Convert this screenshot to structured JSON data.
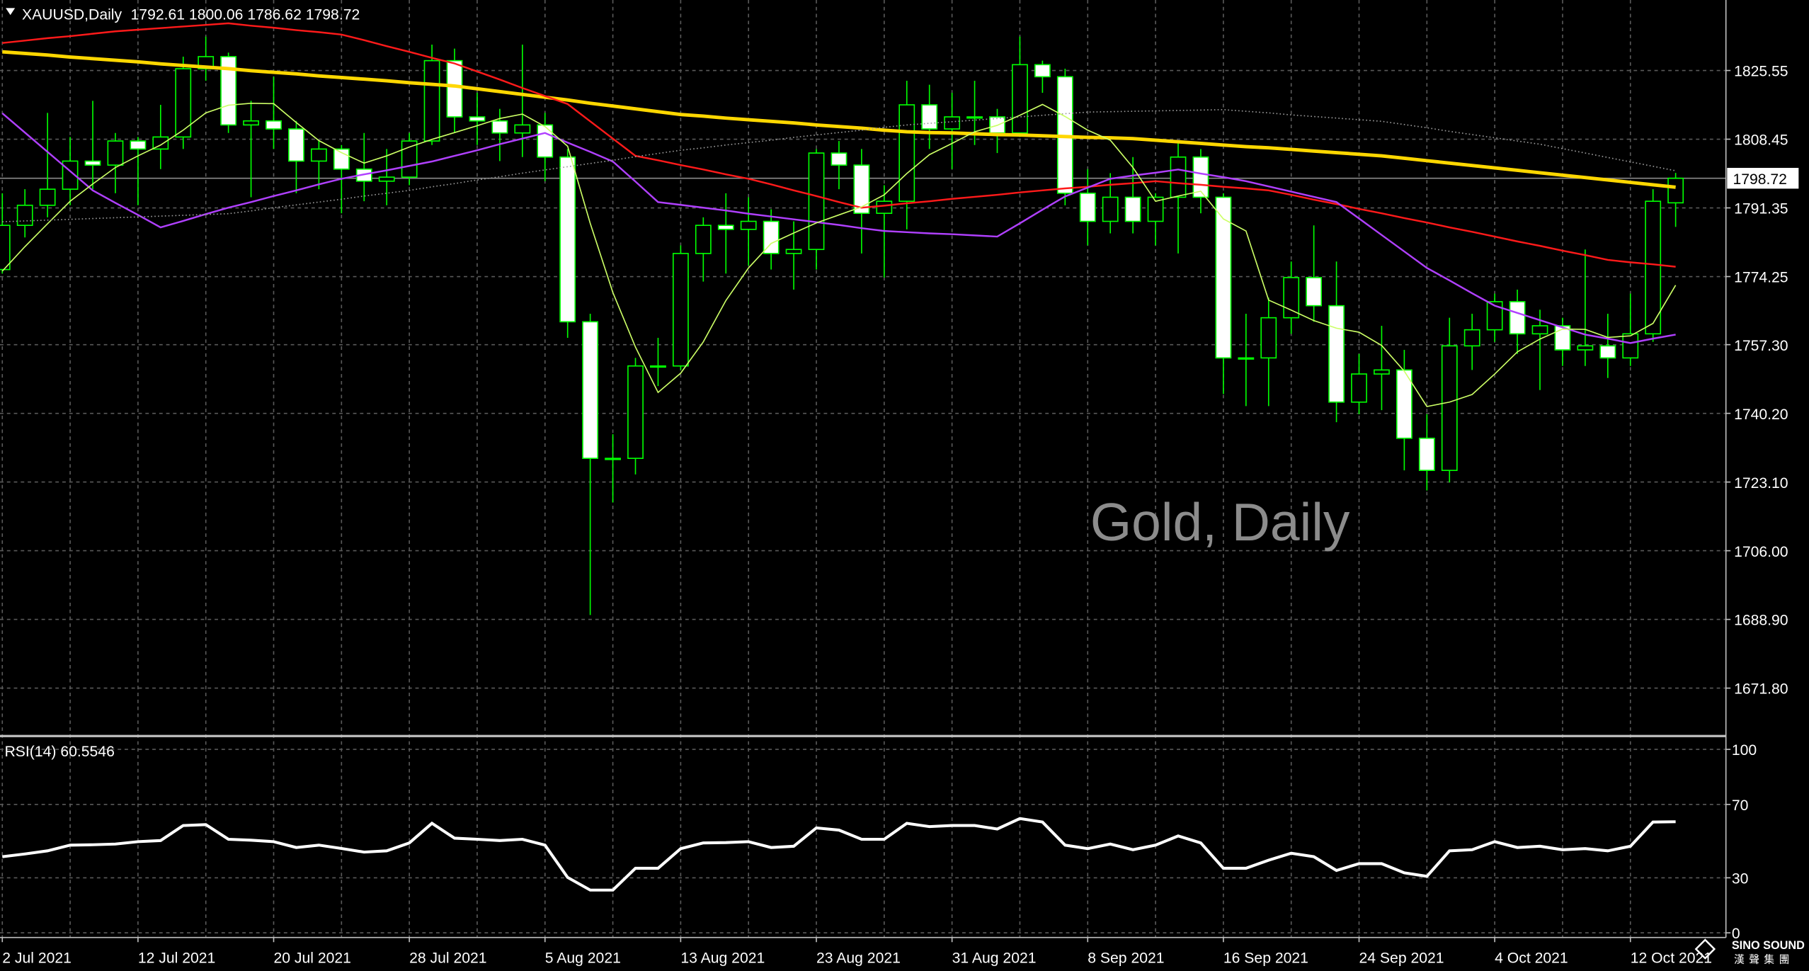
{
  "chart_data": [
    {
      "type": "candlestick",
      "title": "XAUUSD,Daily",
      "watermark": "Gold, Daily",
      "categories": [
        "2 Jul 2021",
        null,
        null,
        null,
        null,
        null,
        "12 Jul 2021",
        null,
        null,
        null,
        null,
        null,
        "20 Jul 2021",
        null,
        null,
        null,
        null,
        null,
        "28 Jul 2021",
        null,
        null,
        null,
        null,
        null,
        "5 Aug 2021",
        null,
        null,
        null,
        null,
        null,
        "13 Aug 2021",
        null,
        null,
        null,
        null,
        null,
        "23 Aug 2021",
        null,
        null,
        null,
        null,
        null,
        "31 Aug 2021",
        null,
        null,
        null,
        null,
        null,
        "8 Sep 2021",
        null,
        null,
        null,
        null,
        null,
        "16 Sep 2021",
        null,
        null,
        null,
        null,
        null,
        "24 Sep 2021",
        null,
        null,
        null,
        null,
        null,
        "4 Oct 2021",
        null,
        null,
        null,
        null,
        null,
        "12 Oct 2021",
        null,
        null
      ],
      "open": [
        1776,
        1787,
        1792,
        1796,
        1803,
        1802,
        1808,
        1806,
        1809,
        1826,
        1829,
        1812,
        1813,
        1811,
        1803,
        1806,
        1801,
        1798,
        1799,
        1808,
        1828,
        1814,
        1813,
        1810,
        1812,
        1804,
        1763,
        1729,
        1729,
        1752,
        1752,
        1780,
        1787,
        1786,
        1788,
        1780,
        1781,
        1805,
        1802,
        1790,
        1793,
        1817,
        1811,
        1814,
        1814,
        1810,
        1827,
        1824,
        1795,
        1788,
        1794,
        1788,
        1794,
        1804,
        1794,
        1754,
        1754,
        1764,
        1774,
        1767,
        1743,
        1750,
        1751,
        1734,
        1726,
        1757,
        1761,
        1768,
        1760,
        1762,
        1756,
        1757,
        1754,
        1760,
        1792.61
      ],
      "high": [
        1795,
        1796,
        1815,
        1809,
        1818,
        1810,
        1809,
        1817,
        1829,
        1834,
        1830,
        1818,
        1824,
        1813,
        1808,
        1807,
        1810,
        1806,
        1810,
        1832,
        1831,
        1820,
        1816,
        1832,
        1815,
        1806,
        1765,
        1735,
        1754,
        1759,
        1782,
        1789,
        1795,
        1794,
        1791,
        1788,
        1806,
        1808,
        1806,
        1797,
        1823,
        1822,
        1820,
        1823,
        1816,
        1834,
        1828,
        1826,
        1801,
        1800,
        1804,
        1795,
        1808,
        1806,
        1795,
        1765,
        1769,
        1778,
        1787,
        1778,
        1755,
        1762,
        1756,
        1740,
        1764,
        1765,
        1770,
        1771,
        1766,
        1764,
        1781,
        1765,
        1770,
        1796,
        1800.06
      ],
      "low": [
        1775,
        1784,
        1789,
        1792,
        1796,
        1795,
        1792,
        1801,
        1806,
        1823,
        1810,
        1794,
        1806,
        1795,
        1796,
        1790,
        1793,
        1792,
        1797,
        1807,
        1810,
        1807,
        1803,
        1804,
        1798,
        1759,
        1690,
        1718,
        1725,
        1747,
        1751,
        1773,
        1775,
        1777,
        1776,
        1771,
        1776,
        1796,
        1780,
        1774,
        1786,
        1806,
        1801,
        1807,
        1805,
        1809,
        1820,
        1792,
        1782,
        1785,
        1785,
        1782,
        1780,
        1790,
        1745,
        1742,
        1742,
        1760,
        1763,
        1738,
        1740,
        1741,
        1726,
        1721,
        1723,
        1751,
        1758,
        1755,
        1746,
        1752,
        1752,
        1749,
        1752,
        1758,
        1786.62
      ],
      "close": [
        1787,
        1792,
        1796,
        1803,
        1802,
        1808,
        1806,
        1809,
        1826,
        1829,
        1812,
        1813,
        1811,
        1803,
        1806,
        1801,
        1798,
        1799,
        1808,
        1828,
        1814,
        1813,
        1810,
        1812,
        1804,
        1763,
        1729,
        1729,
        1752,
        1752,
        1780,
        1787,
        1786,
        1788,
        1780,
        1781,
        1805,
        1802,
        1790,
        1793,
        1817,
        1811,
        1814,
        1814,
        1810,
        1827,
        1824,
        1795,
        1788,
        1794,
        1788,
        1794,
        1804,
        1794,
        1754,
        1754,
        1764,
        1774,
        1767,
        1743,
        1750,
        1751,
        1734,
        1726,
        1757,
        1761,
        1768,
        1760,
        1762,
        1756,
        1757,
        1754,
        1760,
        1793,
        1798.72
      ],
      "up_color": "#00ff00",
      "down_color": "#ffffff",
      "wick_color": "#00ff00",
      "lines": [
        {
          "color": "#ffd700",
          "width": 3,
          "style": "solid",
          "values": [
            1830.2,
            1829.8,
            1829.4,
            1828.9,
            1828.5,
            1828.1,
            1827.7,
            1827.2,
            1826.8,
            1826.4,
            1826.0,
            1825.5,
            1825.1,
            1824.7,
            1824.2,
            1823.8,
            1823.4,
            1823.0,
            1822.5,
            1822.1,
            1821.7,
            1821.0,
            1820.3,
            1819.6,
            1818.9,
            1818.2,
            1817.4,
            1816.7,
            1816.0,
            1815.3,
            1814.6,
            1814.2,
            1813.7,
            1813.3,
            1812.9,
            1812.5,
            1812.0,
            1811.6,
            1811.2,
            1810.7,
            1810.3,
            1810.1,
            1810.0,
            1809.8,
            1809.6,
            1809.5,
            1809.3,
            1809.1,
            1808.9,
            1808.8,
            1808.6,
            1808.2,
            1807.8,
            1807.4,
            1807.0,
            1806.6,
            1806.3,
            1805.9,
            1805.5,
            1805.1,
            1804.7,
            1804.3,
            1803.7,
            1803.1,
            1802.5,
            1801.9,
            1801.3,
            1800.7,
            1800.1,
            1799.5,
            1798.9,
            1798.3,
            1797.7,
            1797.1,
            1796.5
          ]
        },
        {
          "color": "#ff1a1a",
          "width": 1.5,
          "style": "solid",
          "values": [
            1832.4,
            1833.0,
            1833.6,
            1834.1,
            1834.7,
            1835.3,
            1835.7,
            1836.1,
            1836.5,
            1836.9,
            1837.3,
            1836.7,
            1836.2,
            1835.6,
            1835.1,
            1834.5,
            1833.1,
            1831.6,
            1830.2,
            1828.7,
            1827.3,
            1825.3,
            1823.3,
            1821.2,
            1819.2,
            1817.2,
            1812.9,
            1808.6,
            1804.3,
            1803.2,
            1802.0,
            1800.9,
            1799.7,
            1798.6,
            1797.2,
            1795.7,
            1794.3,
            1792.8,
            1791.4,
            1791.9,
            1792.5,
            1793.0,
            1793.6,
            1794.1,
            1794.6,
            1795.2,
            1795.7,
            1796.2,
            1796.6,
            1797.1,
            1797.5,
            1798.0,
            1797.5,
            1797.1,
            1796.6,
            1796.2,
            1795.7,
            1794.6,
            1793.4,
            1792.3,
            1791.1,
            1790.0,
            1788.8,
            1787.7,
            1786.5,
            1785.4,
            1784.2,
            1783.0,
            1781.9,
            1780.7,
            1779.6,
            1778.4,
            1777.8,
            1777.3,
            1776.7
          ]
        },
        {
          "color": "#b040ff",
          "width": 1.5,
          "style": "solid",
          "values": [
            1814.9,
            1810.1,
            1805.3,
            1800.5,
            1795.7,
            1792.6,
            1789.6,
            1786.5,
            1788.1,
            1789.8,
            1791.4,
            1792.8,
            1794.3,
            1795.7,
            1797.2,
            1798.6,
            1799.7,
            1800.7,
            1801.8,
            1802.9,
            1804.3,
            1805.7,
            1807.2,
            1808.6,
            1810.0,
            1807.6,
            1805.3,
            1802.9,
            1797.9,
            1792.8,
            1792.1,
            1791.4,
            1790.7,
            1789.9,
            1789.2,
            1788.5,
            1787.8,
            1787.1,
            1786.3,
            1785.6,
            1785.3,
            1785.0,
            1784.8,
            1784.5,
            1784.2,
            1787.5,
            1790.9,
            1794.2,
            1796.4,
            1798.6,
            1799.4,
            1800.1,
            1800.9,
            1799.9,
            1799.0,
            1798.0,
            1796.7,
            1795.4,
            1794.1,
            1792.8,
            1788.7,
            1784.6,
            1780.5,
            1776.4,
            1773.3,
            1770.1,
            1767.0,
            1765.2,
            1763.4,
            1761.6,
            1759.8,
            1758.8,
            1757.7,
            1758.8,
            1759.8
          ]
        },
        {
          "color": "#ccff66",
          "width": 1,
          "style": "solid",
          "values": [
            1775.6,
            1781.7,
            1787.4,
            1793.0,
            1797.3,
            1801.4,
            1804.3,
            1807.0,
            1810.7,
            1815.0,
            1816.9,
            1817.4,
            1817.3,
            1812.6,
            1808.1,
            1805.1,
            1802.5,
            1804.3,
            1806.5,
            1808.4,
            1810.1,
            1811.8,
            1813.6,
            1814.7,
            1811.6,
            1806.7,
            1787.5,
            1770.3,
            1756.7,
            1745.4,
            1750.2,
            1758.0,
            1768.3,
            1776.4,
            1782.5,
            1785.1,
            1787.6,
            1789.6,
            1791.6,
            1794.6,
            1799.9,
            1804.6,
            1807.4,
            1810.3,
            1811.9,
            1814.4,
            1817.1,
            1814.1,
            1810.7,
            1808.2,
            1801.4,
            1793.0,
            1794.3,
            1795.5,
            1788.6,
            1785.6,
            1768.4,
            1765.9,
            1763.3,
            1761.4,
            1760.4,
            1757.1,
            1750.7,
            1741.9,
            1743.0,
            1744.9,
            1750.0,
            1755.5,
            1758.7,
            1761.2,
            1761.1,
            1759.1,
            1759.5,
            1762.6,
            1772.1
          ]
        },
        {
          "color": "#9a9a9a",
          "width": 1,
          "style": "dotted",
          "values": [
            1787.9,
            1788.1,
            1788.3,
            1788.5,
            1788.7,
            1788.9,
            1789.1,
            1789.3,
            1789.5,
            1789.7,
            1789.9,
            1790.6,
            1791.4,
            1792.1,
            1792.8,
            1793.5,
            1794.3,
            1795.0,
            1795.7,
            1796.6,
            1797.4,
            1798.3,
            1799.1,
            1800.0,
            1800.8,
            1801.6,
            1802.4,
            1803.2,
            1804.1,
            1804.9,
            1805.7,
            1806.3,
            1807.0,
            1807.6,
            1808.2,
            1808.9,
            1809.5,
            1810.1,
            1810.7,
            1811.4,
            1812.0,
            1812.4,
            1812.8,
            1813.2,
            1813.6,
            1814.0,
            1814.4,
            1814.8,
            1815.2,
            1815.3,
            1815.4,
            1815.5,
            1815.6,
            1815.7,
            1815.8,
            1815.4,
            1815.0,
            1814.5,
            1814.1,
            1813.7,
            1813.3,
            1812.9,
            1812.1,
            1811.3,
            1810.4,
            1809.6,
            1808.8,
            1808.0,
            1807.2,
            1806.1,
            1805.0,
            1803.9,
            1802.8,
            1801.7,
            1800.6
          ]
        }
      ],
      "ylim": [
        1660.3,
        1843.1
      ],
      "yticks": [
        1825.55,
        1808.45,
        1791.35,
        1774.25,
        {
          "value": 1757.3,
          "label": "1757.30"
        },
        {
          "value": 1740.2,
          "label": "1740.20"
        },
        {
          "value": 1723.1,
          "label": "1723.10"
        },
        {
          "value": 1706,
          "label": "1706.00"
        },
        {
          "value": 1688.9,
          "label": "1688.90"
        },
        {
          "value": 1671.8,
          "label": "1671.80"
        }
      ],
      "grid": true
    },
    {
      "type": "line",
      "title": "RSI(14)",
      "color": "#ffffff",
      "values": [
        41.5,
        43.0,
        44.7,
        47.8,
        48.0,
        48.4,
        49.7,
        50.3,
        58.5,
        59.0,
        51.0,
        50.5,
        49.7,
        46.5,
        47.8,
        46.0,
        44.0,
        44.7,
        49.0,
        59.7,
        51.6,
        51.0,
        50.3,
        51.0,
        47.8,
        30.2,
        23.3,
        23.3,
        35.2,
        35.2,
        45.9,
        49.0,
        49.2,
        49.7,
        46.5,
        47.2,
        57.2,
        56.0,
        51.0,
        51.0,
        59.7,
        57.9,
        58.5,
        58.5,
        56.6,
        62.3,
        60.4,
        47.8,
        45.9,
        48.4,
        45.3,
        47.8,
        52.8,
        49.0,
        35.2,
        35.2,
        39.6,
        43.4,
        41.5,
        34.0,
        37.7,
        37.7,
        32.7,
        30.8,
        44.7,
        45.3,
        49.7,
        46.5,
        47.2,
        45.3,
        45.9,
        44.7,
        47.2,
        60.4,
        60.5546
      ],
      "ylim": [
        -1.3,
        105.7
      ],
      "yticks": [
        100,
        70,
        30,
        0
      ]
    }
  ],
  "brand": {
    "name": "SINO SOUND",
    "subtitle": "漢聲集團"
  }
}
